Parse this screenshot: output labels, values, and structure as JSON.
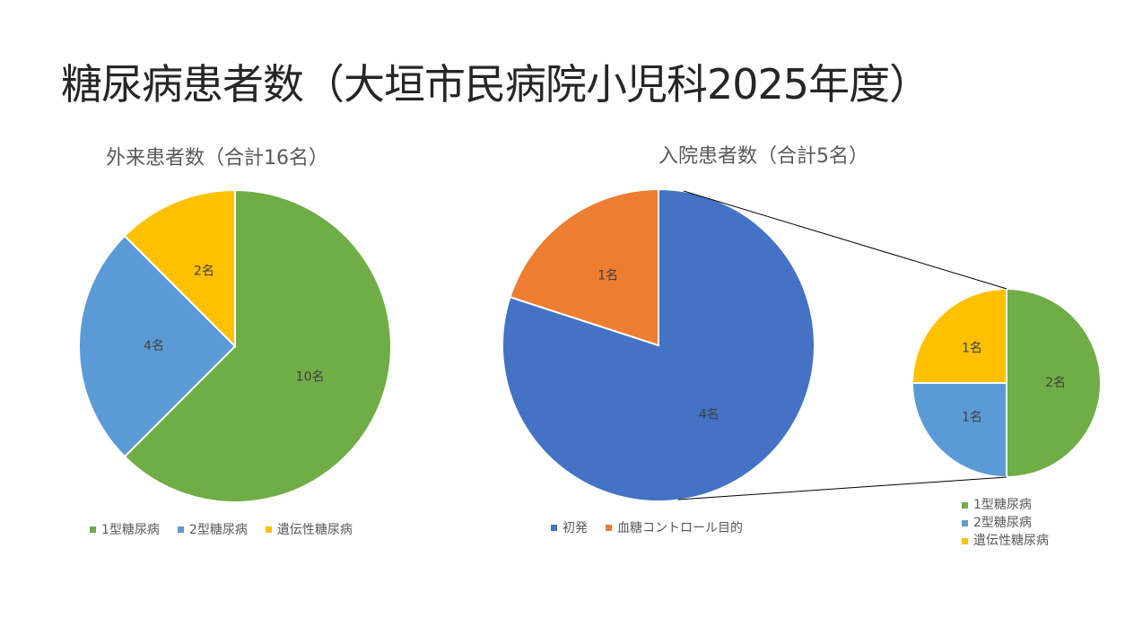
{
  "title": "糖尿病患者数（大垣市民病院小児科2025年度）",
  "chart_data": [
    {
      "type": "pie",
      "title": "外来患者数（合計16名）",
      "categories": [
        "1型糖尿病",
        "2型糖尿病",
        "遺伝性糖尿病"
      ],
      "values": [
        10,
        4,
        2
      ],
      "data_labels": [
        "10名",
        "4名",
        "2名"
      ],
      "colors": [
        "#70AD47",
        "#5B9BD5",
        "#FFC000"
      ],
      "legend": "bottom"
    },
    {
      "type": "pie",
      "title": "入院患者数（合計5名）",
      "categories": [
        "初発",
        "血糖コントロール目的"
      ],
      "values": [
        4,
        1
      ],
      "data_labels": [
        "4名",
        "1名"
      ],
      "colors": [
        "#4472C4",
        "#ED7D31"
      ],
      "legend": "bottom",
      "breakdown": {
        "of": "初発",
        "categories": [
          "1型糖尿病",
          "2型糖尿病",
          "遺伝性糖尿病"
        ],
        "values": [
          2,
          1,
          1
        ],
        "data_labels": [
          "2名",
          "1名",
          "1名"
        ],
        "colors": [
          "#70AD47",
          "#5B9BD5",
          "#FFC000"
        ],
        "legend": "bottom-right"
      }
    }
  ]
}
